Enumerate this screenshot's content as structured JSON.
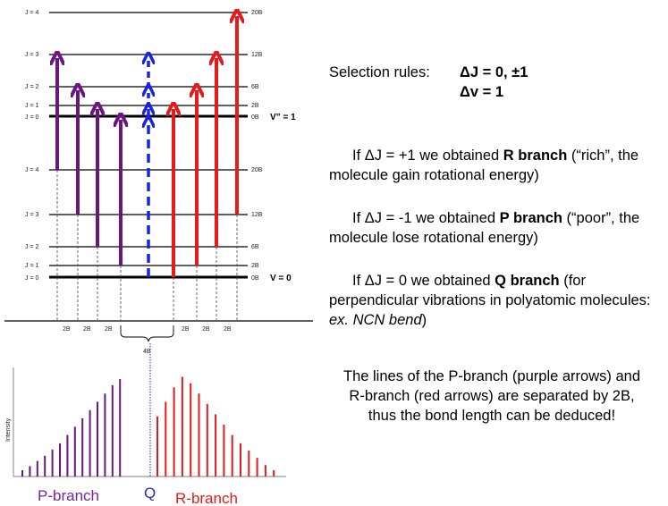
{
  "colors": {
    "purple": "#6a1580",
    "red": "#e61a1a",
    "blue": "#1a23e0",
    "axis": "#000000",
    "guide": "#444444"
  },
  "upper_levels": [
    {
      "j": "J = 4",
      "energy": "20B"
    },
    {
      "j": "J = 3",
      "energy": "12B"
    },
    {
      "j": "J = 2",
      "energy": "6B"
    },
    {
      "j": "J = 1",
      "energy": "2B"
    },
    {
      "j": "J = 0",
      "energy": "0B"
    }
  ],
  "lower_levels": [
    {
      "j": "J = 4",
      "energy": "20B"
    },
    {
      "j": "J = 3",
      "energy": "12B"
    },
    {
      "j": "J = 2",
      "energy": "6B"
    },
    {
      "j": "J = 1",
      "energy": "2B"
    },
    {
      "j": "J = 0",
      "energy": "0B"
    }
  ],
  "vib_upper": "V” = 1",
  "vib_lower": "V = 0",
  "spacing_labels": [
    "2B",
    "2B",
    "2B",
    "2B",
    "2B",
    "2B"
  ],
  "gap_label": "4B",
  "spectrum": {
    "ylabel": "Intensity",
    "p_label": "P-branch",
    "q_label": "Q",
    "r_label": "R-branch",
    "p_lines": [
      0.06,
      0.1,
      0.15,
      0.2,
      0.26,
      0.32,
      0.4,
      0.48,
      0.56,
      0.64,
      0.72,
      0.8,
      0.88,
      0.94
    ],
    "r_lines": [
      0.58,
      0.72,
      0.86,
      0.96,
      0.9,
      0.8,
      0.7,
      0.6,
      0.5,
      0.4,
      0.32,
      0.25,
      0.18,
      0.11,
      0.06
    ]
  },
  "text": {
    "sel_label": "Selection rules:",
    "sel_rule1": "ΔJ = 0, ±1",
    "sel_rule2": "Δv = 1",
    "r_pre": "If ΔJ = +1 we obtained ",
    "r_bold": "R branch",
    "r_post": " (“rich”, the molecule gain rotational energy)",
    "p_pre": "If ΔJ = -1 we obtained ",
    "p_bold": "P branch",
    "p_post": " (“poor”, the molecule lose rotational energy)",
    "q_pre": "If ΔJ = 0 we obtained ",
    "q_bold": "Q branch",
    "q_mid": " (for perpendicular vibrations in polyatomic molecules: ",
    "q_ital": "ex. NCN bend",
    "q_post": ")",
    "conclusion": "The lines of the P-branch (purple arrows) and R-branch (red arrows) are separated by 2B, thus the bond length can be deduced!"
  }
}
